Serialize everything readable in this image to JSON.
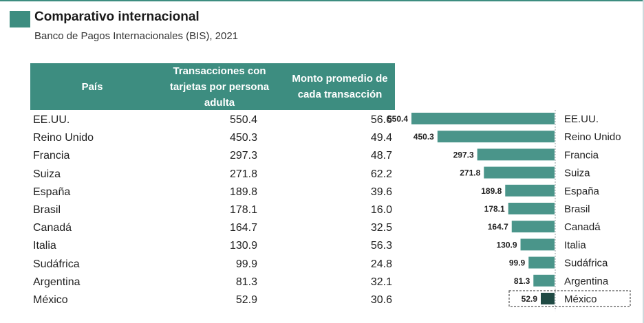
{
  "header": {
    "title": "Comparativo internacional",
    "subtitle": "Banco de Pagos Internacionales (BIS), 2021"
  },
  "colors": {
    "accent": "#3d8d80",
    "header_bg": "#3d8d80",
    "bar": "#4a958a",
    "highlight_bar": "#1f4a44"
  },
  "table": {
    "columns": [
      "País",
      "Transacciones con tarjetas por persona adulta",
      "Monto promedio de cada transacción"
    ],
    "rows": [
      [
        "EE.UU.",
        "550.4",
        "56.6"
      ],
      [
        "Reino Unido",
        "450.3",
        "49.4"
      ],
      [
        "Francia",
        "297.3",
        "48.7"
      ],
      [
        "Suiza",
        "271.8",
        "62.2"
      ],
      [
        "España",
        "189.8",
        "39.6"
      ],
      [
        "Brasil",
        "178.1",
        "16.0"
      ],
      [
        "Canadá",
        "164.7",
        "32.5"
      ],
      [
        "Italia",
        "130.9",
        "56.3"
      ],
      [
        "Sudáfrica",
        "99.9",
        "24.8"
      ],
      [
        "Argentina",
        "81.3",
        "32.1"
      ],
      [
        "México",
        "52.9",
        "30.6"
      ]
    ]
  },
  "chart_data": {
    "type": "bar",
    "orientation": "horizontal",
    "categories": [
      "EE.UU.",
      "Reino Unido",
      "Francia",
      "Suiza",
      "España",
      "Brasil",
      "Canadá",
      "Italia",
      "Sudáfrica",
      "Argentina",
      "México"
    ],
    "values": [
      550.4,
      450.3,
      297.3,
      271.8,
      189.8,
      178.1,
      164.7,
      130.9,
      99.9,
      81.3,
      52.9
    ],
    "value_labels": [
      "550.4",
      "450.3",
      "297.3",
      "271.8",
      "189.8",
      "178.1",
      "164.7",
      "130.9",
      "99.9",
      "81.3",
      "52.9"
    ],
    "highlight": "México",
    "bar_direction": "right-to-left",
    "grid": false,
    "legend": "none"
  }
}
